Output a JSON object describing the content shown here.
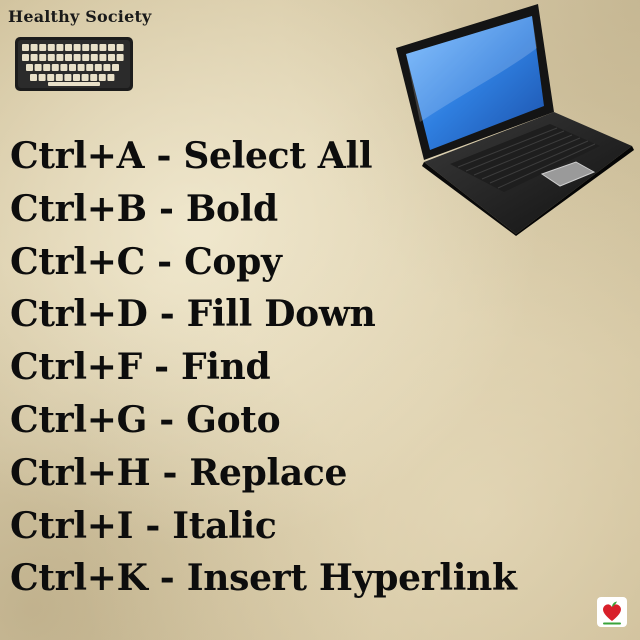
{
  "brand": {
    "name": "Healthy Society"
  },
  "icons": {
    "keyboard": "keyboard-icon",
    "laptop": "laptop-icon",
    "logo": "heart-apple-logo-icon"
  },
  "colors": {
    "text": "#0d0d0d",
    "laptop_screen": "#2f7fe0",
    "heart": "#d8202a",
    "leaf": "#3aa33a"
  },
  "shortcuts": [
    {
      "keys": "Ctrl+A",
      "action": "Select All"
    },
    {
      "keys": "Ctrl+B",
      "action": "Bold"
    },
    {
      "keys": "Ctrl+C",
      "action": "Copy"
    },
    {
      "keys": "Ctrl+D",
      "action": "Fill Down"
    },
    {
      "keys": "Ctrl+F",
      "action": "Find"
    },
    {
      "keys": "Ctrl+G",
      "action": "Goto"
    },
    {
      "keys": "Ctrl+H",
      "action": "Replace"
    },
    {
      "keys": "Ctrl+I",
      "action": "Italic"
    },
    {
      "keys": "Ctrl+K",
      "action": "Insert Hyperlink"
    }
  ],
  "separator": " - "
}
